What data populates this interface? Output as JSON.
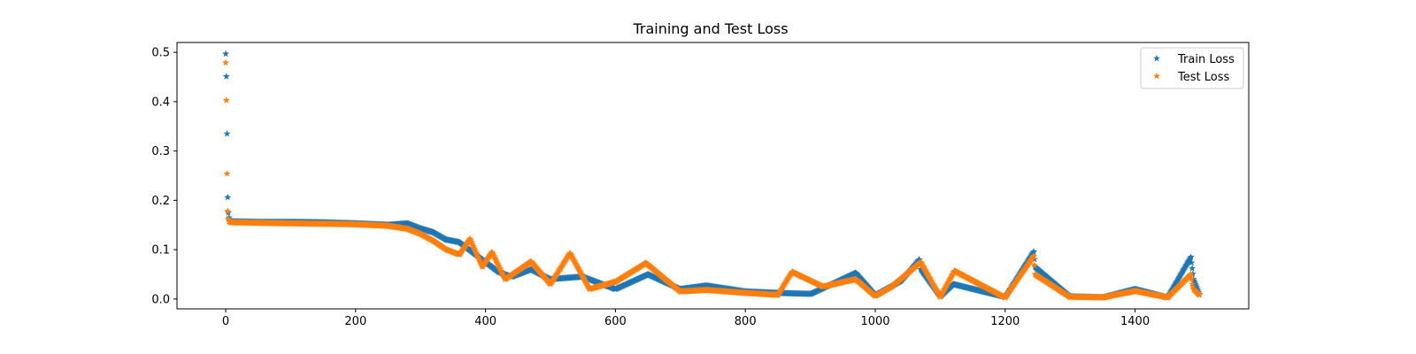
{
  "chart_data": {
    "type": "scatter",
    "title": "Training and Test Loss",
    "xlabel": "",
    "ylabel": "",
    "xlim": [
      -75,
      1575
    ],
    "ylim": [
      -0.02,
      0.52
    ],
    "xticks": [
      0,
      200,
      400,
      600,
      800,
      1000,
      1200,
      1400
    ],
    "yticks": [
      0.0,
      0.1,
      0.2,
      0.3,
      0.4,
      0.5
    ],
    "ytick_labels": [
      "0.0",
      "0.1",
      "0.2",
      "0.3",
      "0.4",
      "0.5"
    ],
    "grid": false,
    "marker": "star",
    "legend_position": "top-right",
    "n_points": 1500,
    "series": [
      {
        "name": "Train Loss",
        "color": "#1f77b4",
        "x": [
          0,
          1,
          2,
          3,
          4,
          5,
          6,
          10,
          50,
          100,
          150,
          200,
          250,
          280,
          300,
          320,
          340,
          360,
          380,
          400,
          420,
          440,
          470,
          500,
          550,
          600,
          650,
          700,
          740,
          800,
          850,
          900,
          970,
          1000,
          1040,
          1068,
          1070,
          1100,
          1120,
          1200,
          1244,
          1246,
          1300,
          1350,
          1400,
          1450,
          1486,
          1488,
          1490,
          1499
        ],
        "y": [
          0.497,
          0.451,
          0.335,
          0.206,
          0.175,
          0.165,
          0.159,
          0.157,
          0.156,
          0.156,
          0.155,
          0.153,
          0.15,
          0.153,
          0.143,
          0.135,
          0.12,
          0.115,
          0.095,
          0.075,
          0.055,
          0.045,
          0.06,
          0.04,
          0.045,
          0.02,
          0.05,
          0.02,
          0.027,
          0.015,
          0.012,
          0.01,
          0.053,
          0.008,
          0.037,
          0.08,
          0.06,
          0.005,
          0.03,
          0.004,
          0.096,
          0.065,
          0.005,
          0.003,
          0.02,
          0.003,
          0.085,
          0.062,
          0.04,
          0.01
        ]
      },
      {
        "name": "Test Loss",
        "color": "#ff7f0e",
        "x": [
          0,
          1,
          2,
          3,
          4,
          5,
          6,
          10,
          50,
          100,
          150,
          200,
          250,
          280,
          300,
          320,
          340,
          360,
          376,
          395,
          410,
          430,
          470,
          500,
          530,
          560,
          600,
          647,
          700,
          740,
          800,
          850,
          872,
          920,
          970,
          1000,
          1025,
          1070,
          1072,
          1100,
          1122,
          1200,
          1244,
          1246,
          1300,
          1350,
          1400,
          1450,
          1486,
          1488,
          1490,
          1499
        ],
        "y": [
          0.479,
          0.403,
          0.254,
          0.178,
          0.162,
          0.158,
          0.156,
          0.155,
          0.154,
          0.153,
          0.152,
          0.151,
          0.148,
          0.142,
          0.132,
          0.118,
          0.1,
          0.09,
          0.122,
          0.065,
          0.095,
          0.04,
          0.076,
          0.03,
          0.093,
          0.02,
          0.035,
          0.073,
          0.015,
          0.018,
          0.012,
          0.008,
          0.055,
          0.025,
          0.04,
          0.006,
          0.025,
          0.075,
          0.07,
          0.004,
          0.057,
          0.003,
          0.087,
          0.05,
          0.004,
          0.003,
          0.016,
          0.003,
          0.05,
          0.03,
          0.02,
          0.008
        ]
      }
    ]
  }
}
